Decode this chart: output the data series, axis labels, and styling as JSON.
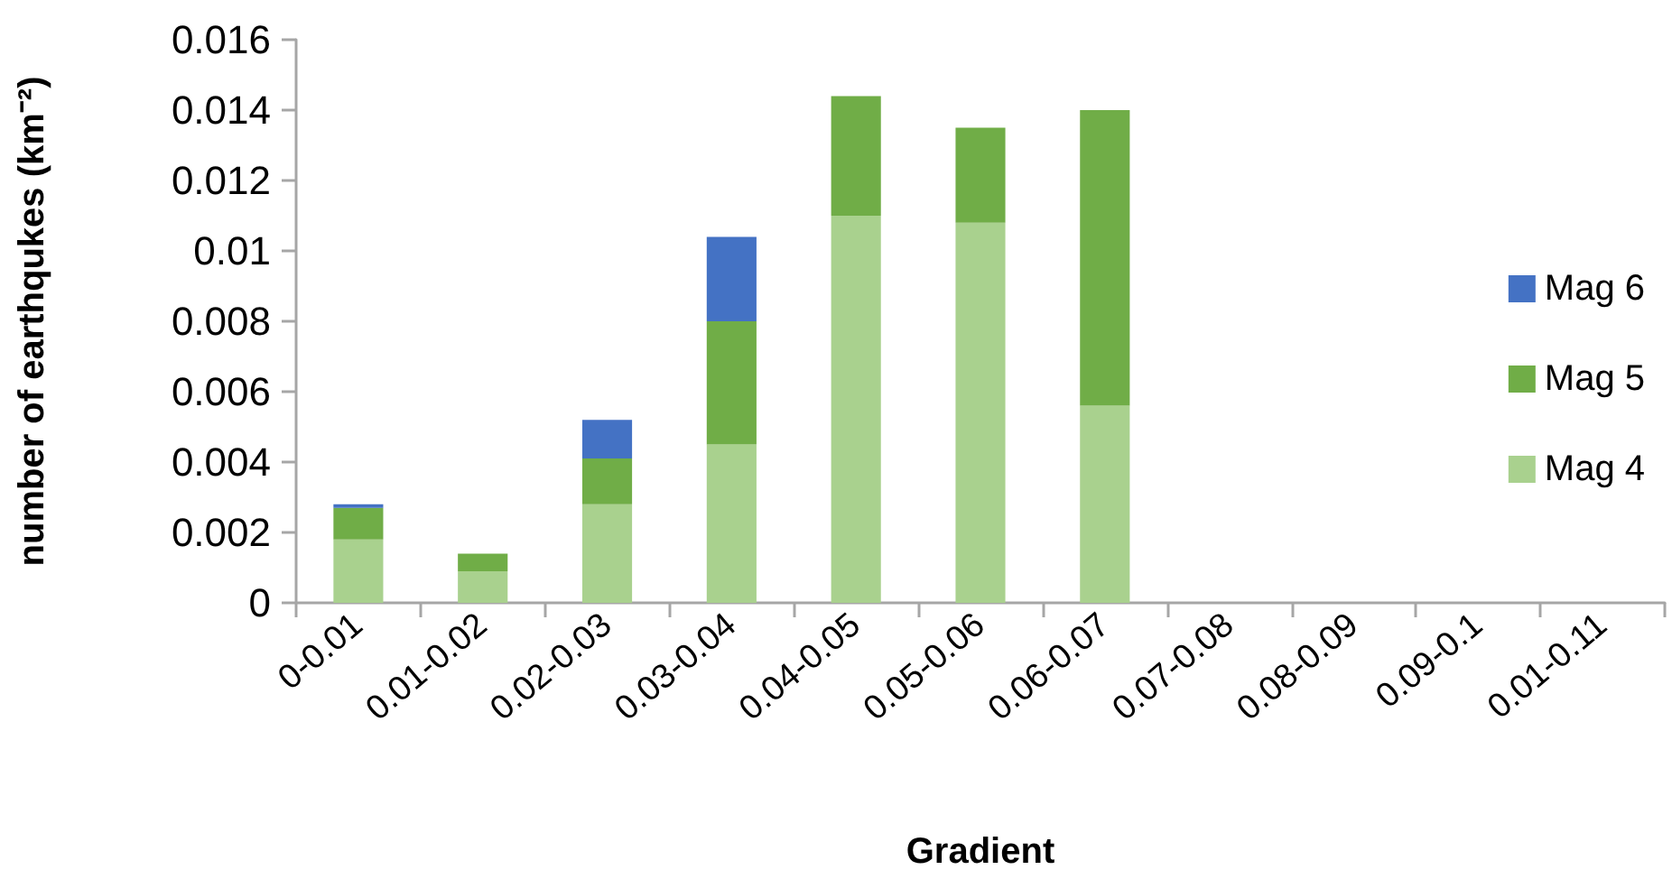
{
  "chart_data": {
    "type": "bar",
    "stacked": true,
    "xlabel": "Gradient",
    "ylabel": "number of earthqukes (km⁻²)",
    "categories": [
      "0-0.01",
      "0.01-0.02",
      "0.02-0.03",
      "0.03-0.04",
      "0.04-0.05",
      "0.05-0.06",
      "0.06-0.07",
      "0.07-0.08",
      "0.08-0.09",
      "0.09-0.1",
      "0.01-0.11"
    ],
    "series": [
      {
        "name": "Mag 4",
        "color": "#a9d18e",
        "values": [
          0.0018,
          0.0009,
          0.0028,
          0.0045,
          0.011,
          0.0108,
          0.0056,
          null,
          null,
          null,
          null
        ]
      },
      {
        "name": "Mag 5",
        "color": "#70ad47",
        "values": [
          0.0009,
          0.0005,
          0.0013,
          0.0035,
          0.0034,
          0.0027,
          0.0084,
          null,
          null,
          null,
          null
        ]
      },
      {
        "name": "Mag 6",
        "color": "#4472c4",
        "values": [
          0.0001,
          null,
          0.0011,
          0.0024,
          null,
          null,
          null,
          null,
          null,
          null,
          null
        ]
      }
    ],
    "ylim": [
      0,
      0.016
    ],
    "yticks": [
      0,
      0.002,
      0.004,
      0.006,
      0.008,
      0.01,
      0.012,
      0.014,
      0.016
    ],
    "grid": false,
    "legend": "right"
  }
}
